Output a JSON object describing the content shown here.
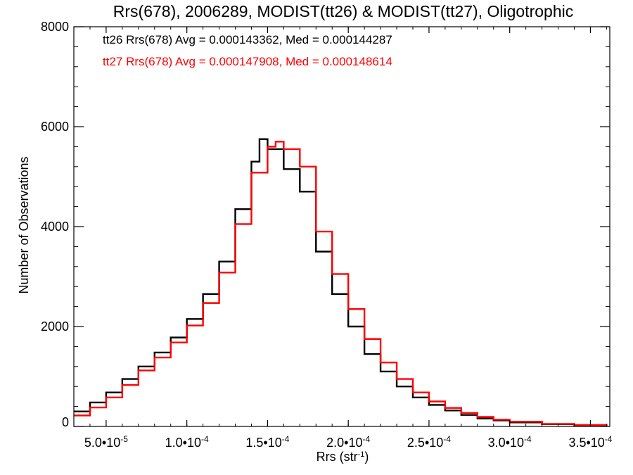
{
  "chart_data": {
    "type": "line",
    "step": true,
    "title": "Rrs(678), 2006289, MODIST(tt26) & MODIST(tt27), Oligotrophic",
    "xlabel": "Rrs (str",
    "xlabel_sup": "-1",
    "xlabel_end": ")",
    "ylabel": "Number of Observations",
    "xlim": [
      3e-05,
      0.000362
    ],
    "ylim": [
      0,
      8000
    ],
    "x_ticks": [
      5e-05,
      0.0001,
      0.00015,
      0.0002,
      0.00025,
      0.0003,
      0.00035
    ],
    "x_tick_labels": [
      {
        "mant": "5.0•10",
        "exp": "-5"
      },
      {
        "mant": "1.0•10",
        "exp": "-4"
      },
      {
        "mant": "1.5•10",
        "exp": "-4"
      },
      {
        "mant": "2.0•10",
        "exp": "-4"
      },
      {
        "mant": "2.5•10",
        "exp": "-4"
      },
      {
        "mant": "3.0•10",
        "exp": "-4"
      },
      {
        "mant": "3.5•10",
        "exp": "-4"
      }
    ],
    "y_ticks": [
      0,
      2000,
      4000,
      6000,
      8000
    ],
    "y_tick_labels": [
      "0",
      "2000",
      "4000",
      "6000",
      "8000"
    ],
    "grid": false,
    "legend_position": "top-left",
    "series": [
      {
        "name": "tt26",
        "color": "#000000",
        "label": "tt26 Rrs(678) Avg = 0.000143362, Med = 0.000144287",
        "points": [
          [
            3e-05,
            300
          ],
          [
            4e-05,
            480
          ],
          [
            5e-05,
            680
          ],
          [
            6e-05,
            950
          ],
          [
            7e-05,
            1200
          ],
          [
            8e-05,
            1480
          ],
          [
            9e-05,
            1780
          ],
          [
            0.0001,
            2150
          ],
          [
            0.00011,
            2650
          ],
          [
            0.00012,
            3300
          ],
          [
            0.00013,
            4350
          ],
          [
            0.00014,
            5300
          ],
          [
            0.000145,
            5750
          ],
          [
            0.00015,
            5550
          ],
          [
            0.00016,
            5150
          ],
          [
            0.00017,
            4700
          ],
          [
            0.00018,
            3500
          ],
          [
            0.00019,
            2650
          ],
          [
            0.0002,
            2000
          ],
          [
            0.00021,
            1450
          ],
          [
            0.00022,
            1100
          ],
          [
            0.00023,
            800
          ],
          [
            0.00024,
            580
          ],
          [
            0.00025,
            430
          ],
          [
            0.00026,
            320
          ],
          [
            0.00027,
            230
          ],
          [
            0.00028,
            160
          ],
          [
            0.00029,
            120
          ],
          [
            0.0003,
            80
          ],
          [
            0.00032,
            45
          ],
          [
            0.00034,
            25
          ],
          [
            0.00036,
            10
          ]
        ]
      },
      {
        "name": "tt27",
        "color": "#ff0000",
        "label": "tt27 Rrs(678) Avg = 0.000147908, Med = 0.000148614",
        "points": [
          [
            3e-05,
            220
          ],
          [
            4e-05,
            380
          ],
          [
            5e-05,
            580
          ],
          [
            6e-05,
            830
          ],
          [
            7e-05,
            1120
          ],
          [
            8e-05,
            1380
          ],
          [
            9e-05,
            1680
          ],
          [
            0.0001,
            2020
          ],
          [
            0.00011,
            2470
          ],
          [
            0.00012,
            3080
          ],
          [
            0.00013,
            4050
          ],
          [
            0.00014,
            5080
          ],
          [
            0.00015,
            5600
          ],
          [
            0.000155,
            5700
          ],
          [
            0.00016,
            5550
          ],
          [
            0.00017,
            5200
          ],
          [
            0.00018,
            3900
          ],
          [
            0.00019,
            3050
          ],
          [
            0.0002,
            2350
          ],
          [
            0.00021,
            1750
          ],
          [
            0.00022,
            1280
          ],
          [
            0.00023,
            950
          ],
          [
            0.00024,
            680
          ],
          [
            0.00025,
            500
          ],
          [
            0.00026,
            370
          ],
          [
            0.00027,
            270
          ],
          [
            0.00028,
            190
          ],
          [
            0.00029,
            135
          ],
          [
            0.0003,
            95
          ],
          [
            0.00032,
            50
          ],
          [
            0.00034,
            28
          ],
          [
            0.00036,
            12
          ]
        ]
      }
    ]
  }
}
